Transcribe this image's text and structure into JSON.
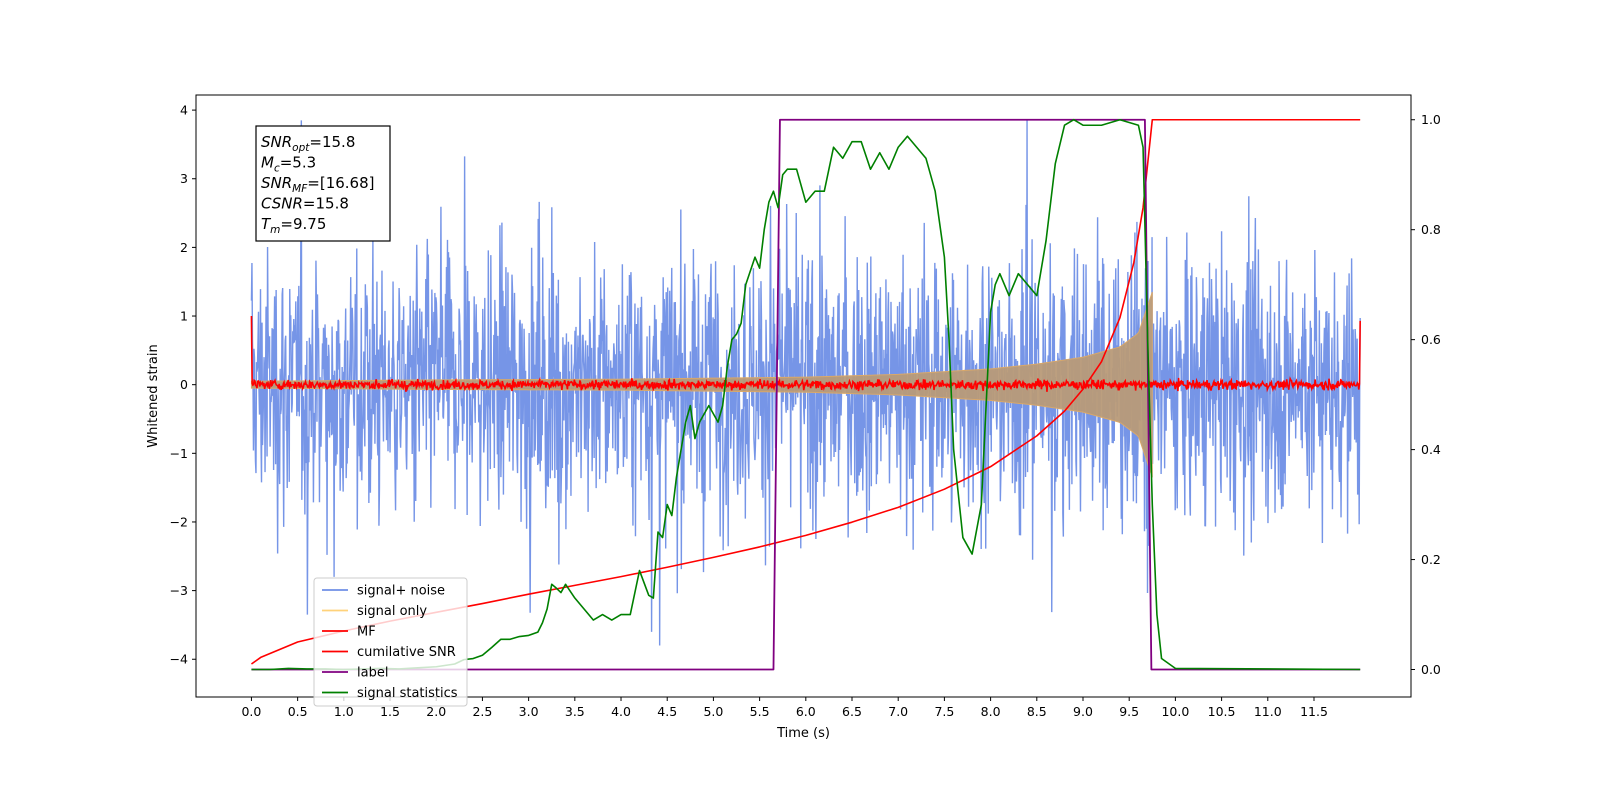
{
  "chart_data": {
    "type": "line",
    "title": "",
    "xlabel": "Time (s)",
    "ylabel": "Whitened strain",
    "xlim": [
      -0.6,
      12.55
    ],
    "ylim": [
      -4.55,
      4.22
    ],
    "y2lim": [
      -0.05,
      1.045
    ],
    "grid": false,
    "legend_position": "lower-left",
    "x_ticks": [
      "0.0",
      "0.5",
      "1.0",
      "1.5",
      "2.0",
      "2.5",
      "3.0",
      "3.5",
      "4.0",
      "4.5",
      "5.0",
      "5.5",
      "6.0",
      "6.5",
      "7.0",
      "7.5",
      "8.0",
      "8.5",
      "9.0",
      "9.5",
      "10.0",
      "10.5",
      "11.0",
      "11.5"
    ],
    "y_ticks": [
      "−4",
      "−3",
      "−2",
      "−1",
      "0",
      "1",
      "2",
      "3",
      "4"
    ],
    "y2_ticks": [
      "0.0",
      "0.2",
      "0.4",
      "0.6",
      "0.8",
      "1.0"
    ],
    "annotation": {
      "lines": [
        {
          "name": "SNR",
          "sub": "opt",
          "value": "=15.8"
        },
        {
          "name": "M",
          "sub": "c",
          "value": "=5.3"
        },
        {
          "name": "SNR",
          "sub": "MF",
          "value": "=[16.68]"
        },
        {
          "name": "CSNR",
          "sub": "",
          "value": "=15.8"
        },
        {
          "name": "T",
          "sub": "m",
          "value": "=9.75"
        }
      ]
    },
    "series": [
      {
        "name": "signal+ noise",
        "axis": "left",
        "color": "#6f8fe6",
        "kind": "noise",
        "x_range": [
          0,
          12
        ],
        "noise_sigma": 0.95,
        "signal_envelope_max": 1.3,
        "signal_end": 9.75
      },
      {
        "name": "signal only",
        "axis": "left",
        "color": "#d9a86a",
        "kind": "chirp-envelope",
        "x_range": [
          0,
          9.75
        ],
        "envelope": [
          [
            0,
            0.05
          ],
          [
            2.0,
            0.07
          ],
          [
            4.0,
            0.08
          ],
          [
            6.0,
            0.11
          ],
          [
            7.0,
            0.15
          ],
          [
            8.0,
            0.23
          ],
          [
            8.5,
            0.3
          ],
          [
            9.0,
            0.4
          ],
          [
            9.4,
            0.55
          ],
          [
            9.6,
            0.75
          ],
          [
            9.75,
            1.35
          ]
        ]
      },
      {
        "name": "MF",
        "axis": "left",
        "color": "#ff0000",
        "kind": "noise",
        "x_range": [
          0,
          12
        ],
        "noise_sigma": 0.035,
        "edges": [
          [
            0.0,
            1.0
          ],
          [
            12.0,
            0.93
          ]
        ]
      },
      {
        "name": "cumilative SNR",
        "axis": "right",
        "color": "#ff0000",
        "kind": "line",
        "points": [
          [
            0,
            0.01
          ],
          [
            0.1,
            0.022
          ],
          [
            0.5,
            0.05
          ],
          [
            1.0,
            0.07
          ],
          [
            1.5,
            0.088
          ],
          [
            2.0,
            0.104
          ],
          [
            2.5,
            0.12
          ],
          [
            3.0,
            0.137
          ],
          [
            3.5,
            0.153
          ],
          [
            4.0,
            0.169
          ],
          [
            4.5,
            0.186
          ],
          [
            5.0,
            0.204
          ],
          [
            5.5,
            0.223
          ],
          [
            6.0,
            0.244
          ],
          [
            6.5,
            0.268
          ],
          [
            7.0,
            0.295
          ],
          [
            7.5,
            0.328
          ],
          [
            8.0,
            0.369
          ],
          [
            8.5,
            0.425
          ],
          [
            8.8,
            0.47
          ],
          [
            9.0,
            0.51
          ],
          [
            9.2,
            0.56
          ],
          [
            9.4,
            0.64
          ],
          [
            9.55,
            0.74
          ],
          [
            9.65,
            0.84
          ],
          [
            9.75,
            1.0
          ],
          [
            12.0,
            1.0
          ]
        ]
      },
      {
        "name": "label",
        "axis": "right",
        "color": "#800080",
        "kind": "line",
        "points": [
          [
            0,
            0.0
          ],
          [
            5.65,
            0.0
          ],
          [
            5.72,
            1.0
          ],
          [
            9.67,
            1.0
          ],
          [
            9.74,
            0.0
          ],
          [
            12.0,
            0.0
          ]
        ]
      },
      {
        "name": "signal statistics",
        "axis": "right",
        "color": "#008000",
        "kind": "line",
        "points": [
          [
            0,
            0.0
          ],
          [
            0.2,
            0.0
          ],
          [
            0.4,
            0.002
          ],
          [
            0.6,
            0.001
          ],
          [
            0.8,
            0.001
          ],
          [
            1.0,
            0.0
          ],
          [
            1.2,
            0.001
          ],
          [
            1.4,
            0.002
          ],
          [
            1.6,
            0.001
          ],
          [
            1.8,
            0.003
          ],
          [
            2.0,
            0.005
          ],
          [
            2.2,
            0.01
          ],
          [
            2.3,
            0.018
          ],
          [
            2.4,
            0.02
          ],
          [
            2.5,
            0.026
          ],
          [
            2.6,
            0.04
          ],
          [
            2.7,
            0.055
          ],
          [
            2.8,
            0.055
          ],
          [
            2.9,
            0.06
          ],
          [
            3.0,
            0.062
          ],
          [
            3.1,
            0.068
          ],
          [
            3.15,
            0.085
          ],
          [
            3.2,
            0.11
          ],
          [
            3.25,
            0.155
          ],
          [
            3.3,
            0.148
          ],
          [
            3.35,
            0.14
          ],
          [
            3.4,
            0.155
          ],
          [
            3.5,
            0.13
          ],
          [
            3.6,
            0.11
          ],
          [
            3.7,
            0.09
          ],
          [
            3.8,
            0.1
          ],
          [
            3.9,
            0.09
          ],
          [
            4.0,
            0.1
          ],
          [
            4.1,
            0.1
          ],
          [
            4.2,
            0.18
          ],
          [
            4.3,
            0.135
          ],
          [
            4.35,
            0.13
          ],
          [
            4.4,
            0.25
          ],
          [
            4.45,
            0.24
          ],
          [
            4.5,
            0.3
          ],
          [
            4.55,
            0.28
          ],
          [
            4.6,
            0.35
          ],
          [
            4.7,
            0.45
          ],
          [
            4.75,
            0.48
          ],
          [
            4.8,
            0.42
          ],
          [
            4.85,
            0.45
          ],
          [
            4.95,
            0.48
          ],
          [
            5.05,
            0.45
          ],
          [
            5.1,
            0.48
          ],
          [
            5.15,
            0.55
          ],
          [
            5.2,
            0.6
          ],
          [
            5.25,
            0.61
          ],
          [
            5.3,
            0.63
          ],
          [
            5.35,
            0.7
          ],
          [
            5.45,
            0.75
          ],
          [
            5.5,
            0.73
          ],
          [
            5.55,
            0.8
          ],
          [
            5.6,
            0.85
          ],
          [
            5.65,
            0.87
          ],
          [
            5.7,
            0.84
          ],
          [
            5.75,
            0.9
          ],
          [
            5.8,
            0.91
          ],
          [
            5.9,
            0.91
          ],
          [
            6.0,
            0.85
          ],
          [
            6.1,
            0.87
          ],
          [
            6.2,
            0.87
          ],
          [
            6.3,
            0.95
          ],
          [
            6.4,
            0.93
          ],
          [
            6.5,
            0.96
          ],
          [
            6.6,
            0.96
          ],
          [
            6.7,
            0.91
          ],
          [
            6.8,
            0.94
          ],
          [
            6.9,
            0.91
          ],
          [
            7.0,
            0.95
          ],
          [
            7.1,
            0.97
          ],
          [
            7.2,
            0.95
          ],
          [
            7.3,
            0.93
          ],
          [
            7.4,
            0.87
          ],
          [
            7.5,
            0.75
          ],
          [
            7.55,
            0.6
          ],
          [
            7.6,
            0.4
          ],
          [
            7.7,
            0.24
          ],
          [
            7.8,
            0.21
          ],
          [
            7.9,
            0.3
          ],
          [
            8.0,
            0.65
          ],
          [
            8.05,
            0.7
          ],
          [
            8.1,
            0.72
          ],
          [
            8.2,
            0.68
          ],
          [
            8.3,
            0.72
          ],
          [
            8.4,
            0.7
          ],
          [
            8.5,
            0.68
          ],
          [
            8.6,
            0.78
          ],
          [
            8.7,
            0.92
          ],
          [
            8.8,
            0.99
          ],
          [
            8.9,
            1.0
          ],
          [
            9.0,
            0.99
          ],
          [
            9.2,
            0.99
          ],
          [
            9.3,
            0.995
          ],
          [
            9.4,
            1.0
          ],
          [
            9.6,
            0.99
          ],
          [
            9.65,
            0.95
          ],
          [
            9.7,
            0.6
          ],
          [
            9.75,
            0.3
          ],
          [
            9.8,
            0.1
          ],
          [
            9.85,
            0.02
          ],
          [
            10.0,
            0.002
          ],
          [
            12.0,
            0.0
          ]
        ]
      }
    ]
  }
}
